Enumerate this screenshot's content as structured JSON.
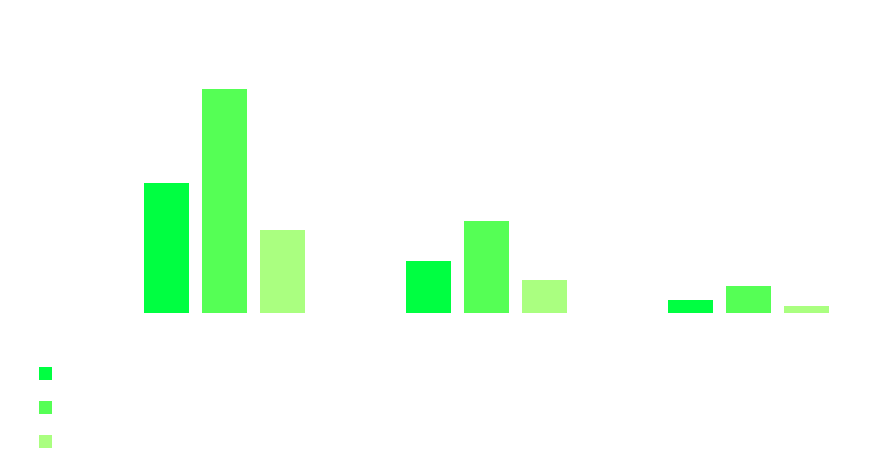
{
  "chart_data": {
    "type": "bar",
    "categories": [
      "",
      "",
      ""
    ],
    "series": [
      {
        "color": "#00ff41",
        "values": [
          130,
          52,
          13
        ]
      },
      {
        "color": "#55ff55",
        "values": [
          224,
          92,
          27
        ]
      },
      {
        "color": "#aaff80",
        "values": [
          83,
          33,
          7
        ]
      }
    ],
    "ylim": [
      0,
      224
    ],
    "grid": false,
    "legend_position": "bottom-left"
  }
}
